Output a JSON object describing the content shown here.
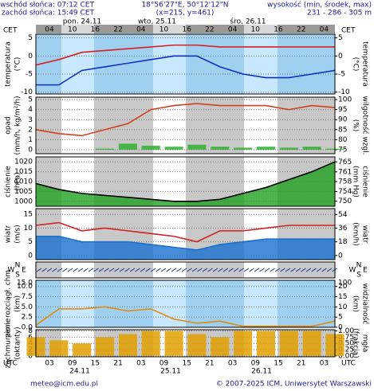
{
  "header": {
    "sunrise": "wschód słońca: 07:12 CET",
    "sunset": "zachód słońca: 15:49 CET",
    "coords": "18°56'27\"E, 50°12'12\"N",
    "grid": "(x=215, y=461)",
    "elevation_label": "wysokość (min, środek, max)",
    "elevation": "231 - 286 - 305 m"
  },
  "time_axis": {
    "top_zone": "CET",
    "top_hours": [
      "04",
      "10",
      "16",
      "22",
      "04",
      "10",
      "16",
      "22",
      "04",
      "10",
      "16",
      "22",
      "04"
    ],
    "days_top": [
      "pon. 24.11",
      "wto, 25.11",
      "śro, 26.11"
    ],
    "bottom_zone": "UTC",
    "bottom_hours": [
      "03",
      "09",
      "15",
      "21",
      "03",
      "09",
      "15",
      "21",
      "03",
      "09",
      "15",
      "21",
      "03"
    ],
    "days_bottom": [
      "24.11",
      "25.11",
      "26.11"
    ]
  },
  "chart_data": [
    {
      "type": "line",
      "ylabel": [
        "temperatura",
        "(°C)"
      ],
      "y2label": [
        "(°C)",
        "temperatura"
      ],
      "ylim": [
        -10.5,
        6
      ],
      "yticks": [
        -10,
        -5,
        0,
        5
      ],
      "y2lim": [
        -10.5,
        6
      ],
      "y2ticks": [
        -10,
        -5,
        0,
        5
      ],
      "grid": true,
      "series": [
        {
          "color": "#d82020",
          "values": [
            -2.5,
            -1,
            1,
            1.5,
            2,
            2.5,
            3,
            3,
            2.5,
            2.5,
            2.5,
            2.5,
            2.5,
            2.5
          ]
        },
        {
          "color": "#1030c0",
          "values": [
            -8,
            -8,
            -4,
            -3,
            -2,
            -1,
            0,
            0,
            -3,
            -5,
            -6,
            -6,
            -5,
            -4
          ]
        }
      ]
    },
    {
      "type": "line",
      "ylabel": [
        "opad",
        "(mm/h, kg/m²/h)"
      ],
      "y2label": [
        "(%)",
        "wilgotność wzgl."
      ],
      "ylim": [
        -0.4,
        5.25
      ],
      "yticks": [
        0,
        1,
        2,
        3,
        4,
        5
      ],
      "y2lim": [
        73,
        101.2
      ],
      "y2ticks": [
        75,
        80,
        85,
        90,
        95,
        100
      ],
      "grid": true,
      "series": [
        {
          "type": "bar",
          "color": "#30b030",
          "values": [
            0,
            0,
            0,
            0.1,
            0.6,
            0.4,
            0.3,
            0.5,
            0.3,
            0.2,
            0.3,
            0.2,
            0.3,
            0.1
          ]
        },
        {
          "color": "#d04020",
          "axis": "y2",
          "values": [
            85,
            83,
            82,
            85,
            88,
            95,
            97,
            98,
            97,
            97,
            97,
            95,
            97,
            96
          ]
        }
      ]
    },
    {
      "type": "area",
      "ylabel": [
        "ciśnienie",
        "(hPa)"
      ],
      "y2label": [
        "(mm Hg)",
        "ciśnienie"
      ],
      "ylim": [
        997.5,
        1022.5
      ],
      "yticks": [
        1000,
        1005,
        1010,
        1015,
        1020
      ],
      "y2lim": [
        748.2,
        767
      ],
      "y2ticks": [
        {
          "value": 750.1,
          "label": "750"
        },
        {
          "value": 753.8,
          "label": "754"
        },
        {
          "value": 757.6,
          "label": "758"
        },
        {
          "value": 761.3,
          "label": "761"
        },
        {
          "value": 765.1,
          "label": "765"
        }
      ],
      "grid": true,
      "series": [
        {
          "color": "#20a020",
          "values": [
            1009,
            1006,
            1004,
            1003,
            1002,
            1001,
            1000,
            1000,
            1001,
            1004,
            1007,
            1011,
            1015,
            1020
          ]
        }
      ]
    },
    {
      "type": "area",
      "ylabel": [
        "wiatr",
        "(m/s)"
      ],
      "y2label": [
        "(km/h)",
        "wiatr"
      ],
      "ylim": [
        -1.5,
        17.1
      ],
      "yticks": [
        0,
        5,
        10,
        15
      ],
      "y2lim": [
        -5.4,
        61.6
      ],
      "y2ticks": [
        0,
        18,
        36,
        54
      ],
      "grid": true,
      "series": [
        {
          "color": "#1a70d0",
          "values": [
            7,
            7,
            5,
            5,
            5,
            4,
            3,
            2,
            4,
            5,
            6,
            6,
            6,
            6
          ]
        },
        {
          "type": "line",
          "color": "#d02020",
          "values": [
            11,
            12,
            9,
            10,
            9,
            8,
            7,
            5,
            9,
            9,
            10,
            11,
            11,
            11
          ]
        }
      ]
    },
    {
      "type": "direction",
      "compass": [
        "W",
        "N",
        "E",
        "S"
      ]
    },
    {
      "type": "line",
      "ylabel": [
        "pion. rozciągł. chm",
        "(km)"
      ],
      "y2label": [
        "(km)",
        "widzialność"
      ],
      "ytop_label": "15.0",
      "y2top_label": "100",
      "ylim": [
        0,
        11.5
      ],
      "yticks": [
        {
          "value": 0,
          "label": "0.0"
        },
        {
          "value": 2.5,
          "label": "2.5"
        },
        {
          "value": 5,
          "label": "5.0"
        },
        {
          "value": 7.5,
          "label": "7.5"
        },
        {
          "value": 10,
          "label": "10.0"
        }
      ],
      "y2lim": [
        0,
        23
      ],
      "y2ticks": [
        0,
        5,
        10,
        15,
        20
      ],
      "grid": true,
      "series": [
        {
          "color": "#e08a10",
          "axis": "y2",
          "values": [
            1,
            9,
            9,
            10,
            8,
            9,
            4,
            2,
            3,
            0.5,
            0.5,
            0.5,
            0.5,
            3
          ]
        }
      ]
    },
    {
      "type": "bar",
      "ylabel": [
        "zachmurzenie",
        "(oktanty)"
      ],
      "y2label": [
        "(frakcja)",
        "mgła"
      ],
      "ylim": [
        -0.3,
        8.4
      ],
      "yticks": [
        0,
        2,
        4,
        6,
        8
      ],
      "y2lim": [
        -0.04,
        1.05
      ],
      "y2ticks": [
        {
          "value": 0,
          "label": "0.00"
        },
        {
          "value": 0.25,
          "label": "0.25"
        },
        {
          "value": 0.5,
          "label": "0.50"
        },
        {
          "value": 0.75,
          "label": "0.75"
        },
        {
          "value": 1,
          "label": "1.00"
        }
      ],
      "grid": true,
      "series": [
        {
          "type": "bar",
          "color": "#e0a000",
          "values": [
            6,
            5,
            4,
            6,
            7,
            8,
            8,
            7,
            6,
            8,
            8,
            8,
            8,
            7
          ]
        }
      ]
    }
  ],
  "footer": {
    "email": "meteo@icm.edu.pl",
    "copyright": "© 2007-2025 ICM, Uniwersytet Warszawski"
  }
}
